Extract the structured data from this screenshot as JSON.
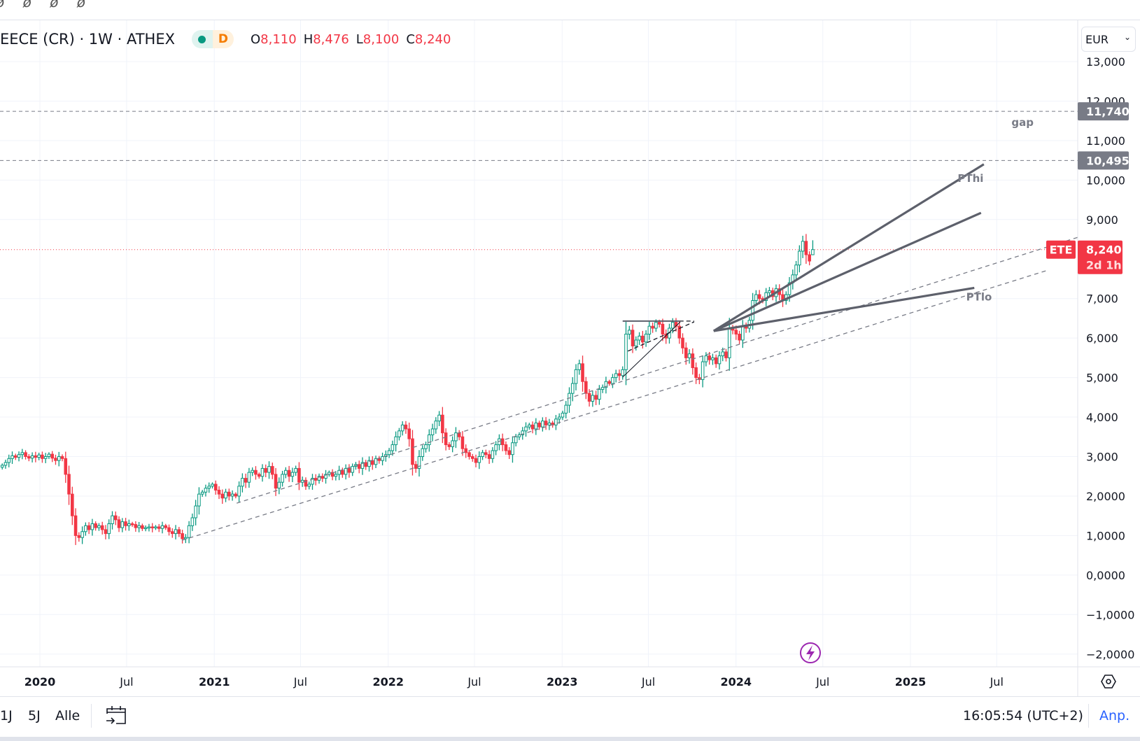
{
  "toolbar": {
    "icons": [
      "drawing-tool-icon",
      "drawing-tool-icon",
      "drawing-tool-icon",
      "drawing-tool-icon"
    ]
  },
  "legend": {
    "symbol": "EECE (CR) · 1W · ATHEX",
    "status_dot_color": "#089981",
    "delay_badge": "D",
    "ohlc": [
      {
        "k": "O",
        "v": "8,110"
      },
      {
        "k": "H",
        "v": "8,476"
      },
      {
        "k": "L",
        "v": "8,100"
      },
      {
        "k": "C",
        "v": "8,240"
      }
    ]
  },
  "currency": {
    "selected": "EUR"
  },
  "price_tag": {
    "symbol": "ETE",
    "price": "8,240",
    "countdown": "2d 1h",
    "color": "#f23645"
  },
  "bottom": {
    "ranges": [
      "1J",
      "5J",
      "Alle"
    ],
    "clock": "16:05:54 (UTC+2)",
    "adjust": "Anp."
  },
  "chart_data": {
    "type": "candlestick",
    "interval": "1W",
    "x_start": "2019-10-14",
    "colors": {
      "up": "#089981",
      "down": "#f23645",
      "drawing": "#5d606b"
    },
    "y_ticks": [
      "13,000",
      "12,000",
      "11,000",
      "10,000",
      "9,000",
      "7,000",
      "6,000",
      "5,000",
      "4,000",
      "3,000",
      "2,0000",
      "1,0000",
      "0,0000",
      "−1,0000",
      "−2,0000"
    ],
    "y_tick_values": [
      13,
      12,
      11,
      10,
      9,
      7,
      6,
      5,
      4,
      3,
      2,
      1,
      0,
      -1,
      -2
    ],
    "x_ticks": [
      {
        "label": "2020",
        "date": "2020-01-01",
        "bold": true
      },
      {
        "label": "Jul",
        "date": "2020-07-01"
      },
      {
        "label": "2021",
        "date": "2021-01-01",
        "bold": true
      },
      {
        "label": "Jul",
        "date": "2021-07-01"
      },
      {
        "label": "2022",
        "date": "2022-01-01",
        "bold": true
      },
      {
        "label": "Jul",
        "date": "2022-07-01"
      },
      {
        "label": "2023",
        "date": "2023-01-01",
        "bold": true
      },
      {
        "label": "Jul",
        "date": "2023-07-01"
      },
      {
        "label": "2024",
        "date": "2024-01-01",
        "bold": true
      },
      {
        "label": "Jul",
        "date": "2024-07-01"
      },
      {
        "label": "2025",
        "date": "2025-01-01",
        "bold": true
      },
      {
        "label": "Jul",
        "date": "2025-07-01"
      }
    ],
    "close": [
      2.78,
      2.85,
      2.95,
      3.02,
      2.98,
      3.05,
      3.1,
      3.0,
      2.96,
      3.02,
      2.98,
      3.04,
      2.95,
      3.0,
      3.06,
      2.96,
      2.9,
      3.0,
      2.95,
      2.55,
      2.05,
      1.5,
      1.0,
      0.95,
      1.1,
      1.25,
      1.15,
      1.3,
      1.2,
      1.25,
      1.15,
      1.05,
      1.3,
      1.5,
      1.4,
      1.2,
      1.35,
      1.25,
      1.3,
      1.28,
      1.2,
      1.25,
      1.18,
      1.2,
      1.22,
      1.2,
      1.22,
      1.18,
      1.25,
      1.2,
      1.1,
      1.05,
      1.15,
      1.05,
      0.92,
      0.95,
      1.25,
      1.45,
      1.75,
      2.05,
      2.1,
      2.2,
      2.25,
      2.3,
      2.15,
      2.05,
      1.95,
      2.1,
      2.0,
      2.05,
      2.0,
      2.25,
      2.45,
      2.35,
      2.6,
      2.65,
      2.55,
      2.5,
      2.7,
      2.6,
      2.75,
      2.55,
      2.2,
      2.35,
      2.55,
      2.65,
      2.5,
      2.6,
      2.7,
      2.35,
      2.4,
      2.25,
      2.3,
      2.45,
      2.4,
      2.5,
      2.45,
      2.55,
      2.6,
      2.5,
      2.55,
      2.65,
      2.55,
      2.7,
      2.6,
      2.75,
      2.8,
      2.7,
      2.85,
      2.75,
      2.9,
      2.8,
      2.95,
      2.9,
      3.0,
      3.05,
      3.15,
      3.3,
      3.5,
      3.65,
      3.8,
      3.7,
      3.45,
      2.8,
      2.7,
      3.0,
      3.2,
      3.3,
      3.55,
      3.7,
      3.9,
      4.05,
      3.6,
      3.3,
      3.25,
      3.4,
      3.6,
      3.5,
      3.2,
      3.1,
      3.0,
      2.95,
      2.85,
      3.0,
      3.1,
      3.05,
      2.95,
      3.15,
      3.3,
      3.45,
      3.3,
      3.15,
      3.05,
      3.35,
      3.5,
      3.55,
      3.65,
      3.75,
      3.8,
      3.7,
      3.85,
      3.75,
      3.9,
      3.8,
      3.85,
      3.8,
      3.95,
      4.0,
      4.1,
      4.3,
      4.6,
      4.85,
      5.2,
      5.35,
      4.9,
      4.6,
      4.4,
      4.55,
      4.45,
      4.7,
      4.75,
      4.9,
      4.85,
      5.0,
      5.1,
      5.05,
      5.2,
      6.1,
      6.2,
      5.8,
      5.95,
      6.05,
      5.9,
      6.1,
      6.3,
      6.25,
      6.4,
      6.35,
      6.1,
      6.0,
      6.25,
      6.4,
      6.3,
      6.0,
      5.75,
      5.5,
      5.6,
      5.25,
      5.0,
      4.95,
      5.4,
      5.55,
      5.45,
      5.5,
      5.35,
      5.55,
      5.65,
      5.5,
      6.25,
      6.2,
      6.1,
      5.95,
      6.3,
      6.25,
      6.45,
      6.95,
      7.1,
      7.0,
      6.95,
      7.15,
      7.2,
      7.05,
      7.25,
      7.1,
      6.95,
      7.1,
      7.4,
      7.6,
      7.85,
      8.2,
      8.45,
      8.11,
      7.95,
      8.24
    ],
    "last": {
      "open": 8.11,
      "high": 8.476,
      "low": 8.1,
      "close": 8.24
    },
    "horizontal_lines": [
      {
        "price": 11.74,
        "label": "11,740"
      },
      {
        "price": 10.495,
        "label": "10,495"
      }
    ],
    "annotations": [
      {
        "text": "gap",
        "date": "2025-08-01",
        "price": 11.37
      },
      {
        "text": "PThi",
        "date": "2025-04-10",
        "price": 9.95
      },
      {
        "text": "PTlo",
        "date": "2025-04-28",
        "price": 6.95
      }
    ],
    "drawings": [
      {
        "kind": "dashed",
        "from": [
          "2020-10-25",
          0.88
        ],
        "to": [
          "2025-10-14",
          7.71
        ]
      },
      {
        "kind": "dashed",
        "from": [
          "2021-02-17",
          1.82
        ],
        "to": [
          "2025-12-18",
          8.55
        ]
      },
      {
        "kind": "thick",
        "from": [
          "2023-11-15",
          6.18
        ],
        "to": [
          "2025-06-04",
          10.4
        ]
      },
      {
        "kind": "thick",
        "from": [
          "2023-11-15",
          6.18
        ],
        "to": [
          "2025-05-29",
          9.17
        ]
      },
      {
        "kind": "thick",
        "from": [
          "2023-11-15",
          6.18
        ],
        "to": [
          "2025-05-15",
          7.27
        ]
      },
      {
        "kind": "solid",
        "from": [
          "2023-05-08",
          6.43
        ],
        "to": [
          "2023-09-04",
          6.43
        ]
      },
      {
        "kind": "darkdash",
        "from": [
          "2023-09-04",
          6.43
        ],
        "to": [
          "2023-10-05",
          6.43
        ]
      },
      {
        "kind": "thin",
        "from": [
          "2023-05-08",
          5.01
        ],
        "to": [
          "2023-09-06",
          6.41
        ]
      },
      {
        "kind": "darkdash",
        "from": [
          "2023-05-19",
          5.67
        ],
        "to": [
          "2023-10-05",
          6.41
        ]
      }
    ]
  }
}
